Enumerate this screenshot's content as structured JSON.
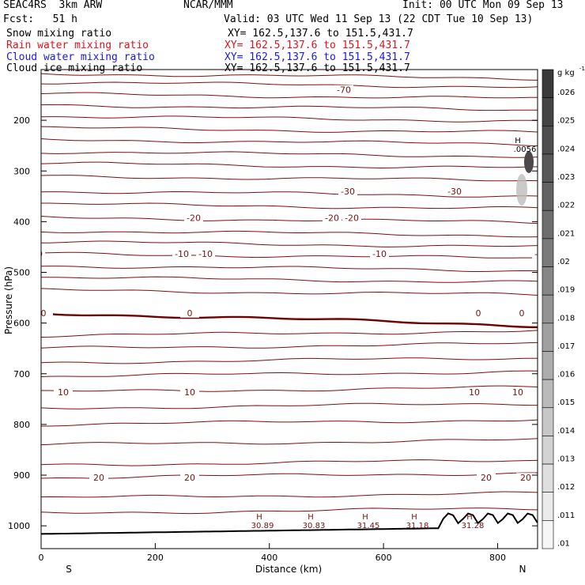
{
  "header": {
    "project": "SEAC4RS  3km ARW",
    "center": "NCAR/MMM",
    "init": "Init: 00 UTC Mon 09 Sep 13",
    "fcst": "Fcst:   51 h",
    "valid": "Valid: 03 UTC Wed 11 Sep 13 (22 CDT Tue 10 Sep 13)",
    "fields": [
      {
        "name": "Snow mixing ratio",
        "xy": "XY= 162.5,137.6 to 151.5,431.7",
        "color": "#000000"
      },
      {
        "name": "Rain water mixing ratio",
        "xy": "XY= 162.5,137.6 to 151.5,431.7",
        "color": "#e0141e"
      },
      {
        "name": "Cloud water mixing ratio",
        "xy": "XY= 162.5,137.6 to 151.5,431.7",
        "color": "#1a1ae0"
      },
      {
        "name": "Cloud ice mixing ratio",
        "xy": "XY= 162.5,137.6 to 151.5,431.7",
        "color": "#000000"
      }
    ]
  },
  "chart_data": {
    "type": "contour",
    "xlabel": "Distance (km)",
    "ylabel": "Pressure (hPa)",
    "xlim": [
      0,
      870
    ],
    "ylim": [
      1045,
      100
    ],
    "x_ticks": [
      "0",
      "200",
      "400",
      "600",
      "800"
    ],
    "y_ticks": [
      "200",
      "300",
      "400",
      "500",
      "600",
      "700",
      "800",
      "900",
      "1000"
    ],
    "x_end_labels": {
      "left": "S",
      "right": "N"
    },
    "colorbar": {
      "unit": "g kg",
      "unit_exp": "-1",
      "ticks": [
        ".026",
        ".025",
        ".024",
        ".023",
        ".022",
        ".021",
        ".02",
        ".019",
        ".018",
        ".017",
        ".016",
        ".015",
        ".014",
        ".013",
        ".012",
        ".011",
        ".01"
      ],
      "colors": [
        "#3a3a3a",
        "#444",
        "#4e4e4e",
        "#585858",
        "#636363",
        "#6e6e6e",
        "#7a7a7a",
        "#868686",
        "#939393",
        "#a0a0a0",
        "#adadad",
        "#bababa",
        "#c7c7c7",
        "#d3d3d3",
        "#dfdfdf",
        "#ebebeb",
        "#f6f6f6"
      ]
    },
    "isotherms": [
      {
        "p": 140,
        "label": "-70",
        "label_x": 435
      },
      {
        "p": 340,
        "label": "-30",
        "label_x": [
          440,
          575,
          715
        ]
      },
      {
        "p": 392,
        "label": "-20",
        "label_x": [
          245,
          420,
          445,
          720
        ]
      },
      {
        "p": 463,
        "label": "-10",
        "label_x": [
          45,
          230,
          260,
          480,
          685
        ]
      },
      {
        "p": 580,
        "label": "0",
        "label_x": [
          20,
          55,
          240,
          605,
          660
        ]
      },
      {
        "p": 736,
        "label": "10",
        "label_x": [
          25,
          80,
          240,
          600,
          655
        ]
      },
      {
        "p": 905,
        "label": "20",
        "label_x": [
          20,
          125,
          240,
          615,
          665
        ]
      }
    ],
    "surface_highs": [
      "30.89",
      "30.83",
      "31.45",
      "31.18",
      "31.28"
    ],
    "cloud_ice_max": ".0056",
    "high_symbol": "H",
    "contour_color": "#7a1010",
    "freezing_color": "#6e0000"
  }
}
